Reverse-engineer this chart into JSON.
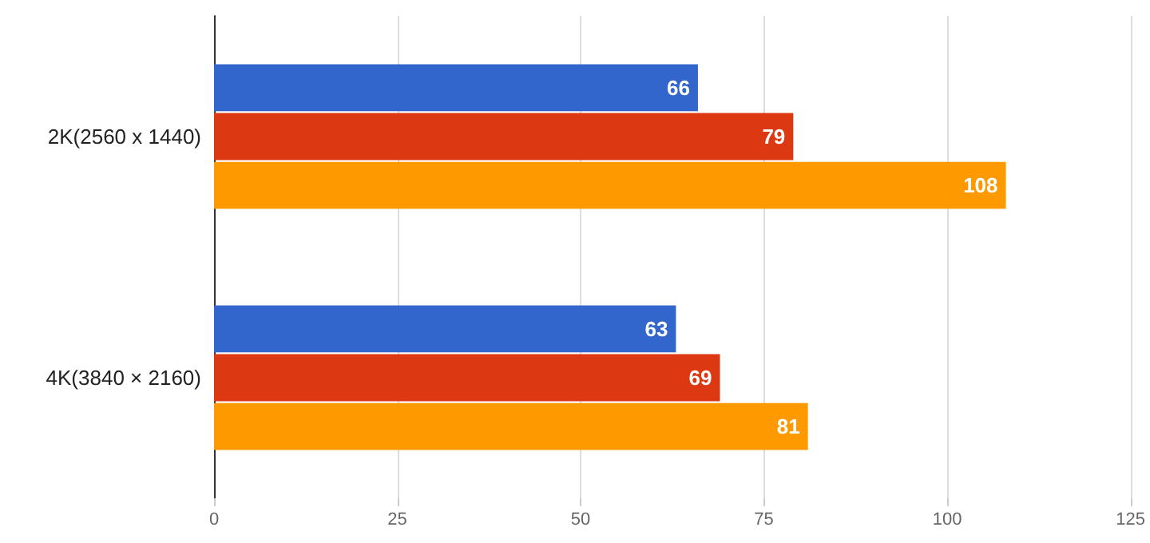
{
  "chart_data": {
    "type": "bar",
    "orientation": "horizontal",
    "categories": [
      "2K(2560 x 1440)",
      "4K(3840 × 2160)"
    ],
    "series": [
      {
        "color": "#3366cc",
        "values": [
          66,
          63
        ]
      },
      {
        "color": "#dc3912",
        "values": [
          79,
          69
        ]
      },
      {
        "color": "#ff9900",
        "values": [
          108,
          81
        ]
      }
    ],
    "xlim": [
      0,
      125
    ],
    "xticks": [
      0,
      25,
      50,
      75,
      100,
      125
    ],
    "grid": "x",
    "data_labels": true
  }
}
